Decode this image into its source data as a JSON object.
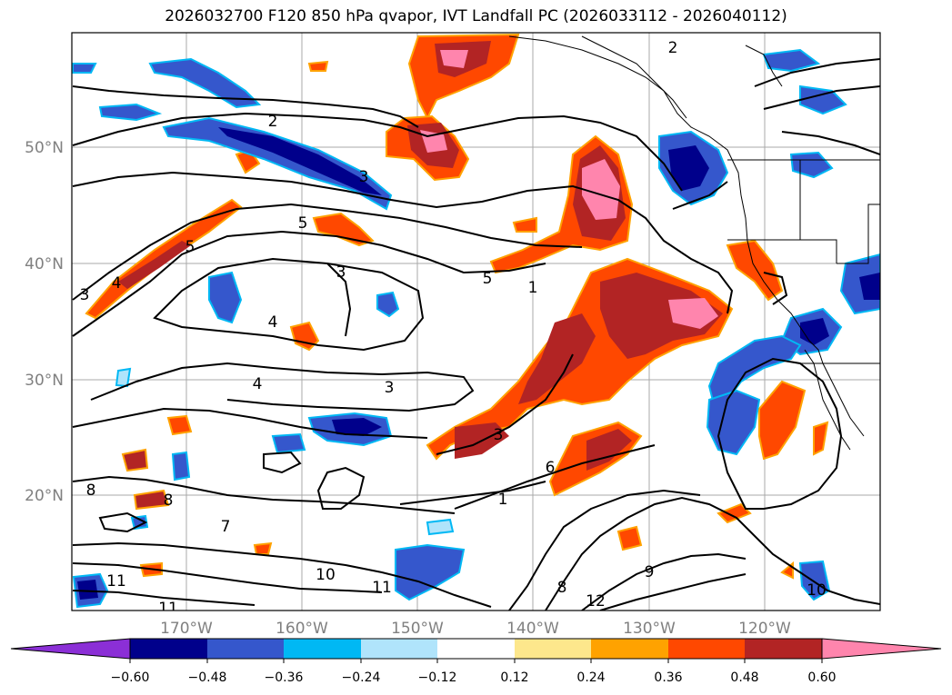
{
  "title": "2026032700 F120 850 hPa qvapor, IVT Landfall PC (2026033112 - 2026040112)",
  "map": {
    "lat_labels": [
      "50°N",
      "40°N",
      "30°N",
      "20°N"
    ],
    "lon_labels": [
      "170°W",
      "160°W",
      "150°W",
      "140°W",
      "130°W",
      "120°W"
    ],
    "contour_labels": [
      "2",
      "3",
      "5",
      "4",
      "5",
      "3",
      "4",
      "3",
      "4",
      "3",
      "5",
      "1",
      "3",
      "6",
      "1",
      "8",
      "9",
      "10",
      "11",
      "11",
      "12",
      "10",
      "8",
      "8",
      "7",
      "2",
      "11"
    ]
  },
  "colorbar": {
    "ticks": [
      "−0.60",
      "−0.48",
      "−0.36",
      "−0.24",
      "−0.12",
      "0.12",
      "0.24",
      "0.36",
      "0.48",
      "0.60"
    ],
    "colors": [
      "#8b2fd6",
      "#00008b",
      "#3557cc",
      "#00b8f4",
      "#b0e4fb",
      "#ffffff",
      "#fde78c",
      "#ffa200",
      "#ff4800",
      "#b22424",
      "#ff85ad"
    ]
  }
}
